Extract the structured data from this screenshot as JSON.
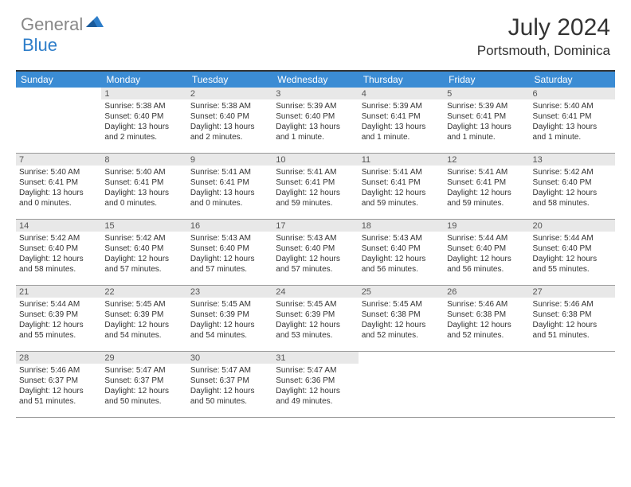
{
  "logo": {
    "general": "General",
    "blue": "Blue"
  },
  "title": "July 2024",
  "location": "Portsmouth, Dominica",
  "colors": {
    "header_bg": "#3b8cd4",
    "daynum_bg": "#e8e8e8",
    "border": "#999999",
    "text": "#333333",
    "logo_gray": "#888888",
    "logo_blue": "#2d7dc9"
  },
  "weekdays": [
    "Sunday",
    "Monday",
    "Tuesday",
    "Wednesday",
    "Thursday",
    "Friday",
    "Saturday"
  ],
  "weeks": [
    [
      {
        "n": "",
        "sr": "",
        "ss": "",
        "d1": "",
        "d2": ""
      },
      {
        "n": "1",
        "sr": "Sunrise: 5:38 AM",
        "ss": "Sunset: 6:40 PM",
        "d1": "Daylight: 13 hours",
        "d2": "and 2 minutes."
      },
      {
        "n": "2",
        "sr": "Sunrise: 5:38 AM",
        "ss": "Sunset: 6:40 PM",
        "d1": "Daylight: 13 hours",
        "d2": "and 2 minutes."
      },
      {
        "n": "3",
        "sr": "Sunrise: 5:39 AM",
        "ss": "Sunset: 6:40 PM",
        "d1": "Daylight: 13 hours",
        "d2": "and 1 minute."
      },
      {
        "n": "4",
        "sr": "Sunrise: 5:39 AM",
        "ss": "Sunset: 6:41 PM",
        "d1": "Daylight: 13 hours",
        "d2": "and 1 minute."
      },
      {
        "n": "5",
        "sr": "Sunrise: 5:39 AM",
        "ss": "Sunset: 6:41 PM",
        "d1": "Daylight: 13 hours",
        "d2": "and 1 minute."
      },
      {
        "n": "6",
        "sr": "Sunrise: 5:40 AM",
        "ss": "Sunset: 6:41 PM",
        "d1": "Daylight: 13 hours",
        "d2": "and 1 minute."
      }
    ],
    [
      {
        "n": "7",
        "sr": "Sunrise: 5:40 AM",
        "ss": "Sunset: 6:41 PM",
        "d1": "Daylight: 13 hours",
        "d2": "and 0 minutes."
      },
      {
        "n": "8",
        "sr": "Sunrise: 5:40 AM",
        "ss": "Sunset: 6:41 PM",
        "d1": "Daylight: 13 hours",
        "d2": "and 0 minutes."
      },
      {
        "n": "9",
        "sr": "Sunrise: 5:41 AM",
        "ss": "Sunset: 6:41 PM",
        "d1": "Daylight: 13 hours",
        "d2": "and 0 minutes."
      },
      {
        "n": "10",
        "sr": "Sunrise: 5:41 AM",
        "ss": "Sunset: 6:41 PM",
        "d1": "Daylight: 12 hours",
        "d2": "and 59 minutes."
      },
      {
        "n": "11",
        "sr": "Sunrise: 5:41 AM",
        "ss": "Sunset: 6:41 PM",
        "d1": "Daylight: 12 hours",
        "d2": "and 59 minutes."
      },
      {
        "n": "12",
        "sr": "Sunrise: 5:41 AM",
        "ss": "Sunset: 6:41 PM",
        "d1": "Daylight: 12 hours",
        "d2": "and 59 minutes."
      },
      {
        "n": "13",
        "sr": "Sunrise: 5:42 AM",
        "ss": "Sunset: 6:40 PM",
        "d1": "Daylight: 12 hours",
        "d2": "and 58 minutes."
      }
    ],
    [
      {
        "n": "14",
        "sr": "Sunrise: 5:42 AM",
        "ss": "Sunset: 6:40 PM",
        "d1": "Daylight: 12 hours",
        "d2": "and 58 minutes."
      },
      {
        "n": "15",
        "sr": "Sunrise: 5:42 AM",
        "ss": "Sunset: 6:40 PM",
        "d1": "Daylight: 12 hours",
        "d2": "and 57 minutes."
      },
      {
        "n": "16",
        "sr": "Sunrise: 5:43 AM",
        "ss": "Sunset: 6:40 PM",
        "d1": "Daylight: 12 hours",
        "d2": "and 57 minutes."
      },
      {
        "n": "17",
        "sr": "Sunrise: 5:43 AM",
        "ss": "Sunset: 6:40 PM",
        "d1": "Daylight: 12 hours",
        "d2": "and 57 minutes."
      },
      {
        "n": "18",
        "sr": "Sunrise: 5:43 AM",
        "ss": "Sunset: 6:40 PM",
        "d1": "Daylight: 12 hours",
        "d2": "and 56 minutes."
      },
      {
        "n": "19",
        "sr": "Sunrise: 5:44 AM",
        "ss": "Sunset: 6:40 PM",
        "d1": "Daylight: 12 hours",
        "d2": "and 56 minutes."
      },
      {
        "n": "20",
        "sr": "Sunrise: 5:44 AM",
        "ss": "Sunset: 6:40 PM",
        "d1": "Daylight: 12 hours",
        "d2": "and 55 minutes."
      }
    ],
    [
      {
        "n": "21",
        "sr": "Sunrise: 5:44 AM",
        "ss": "Sunset: 6:39 PM",
        "d1": "Daylight: 12 hours",
        "d2": "and 55 minutes."
      },
      {
        "n": "22",
        "sr": "Sunrise: 5:45 AM",
        "ss": "Sunset: 6:39 PM",
        "d1": "Daylight: 12 hours",
        "d2": "and 54 minutes."
      },
      {
        "n": "23",
        "sr": "Sunrise: 5:45 AM",
        "ss": "Sunset: 6:39 PM",
        "d1": "Daylight: 12 hours",
        "d2": "and 54 minutes."
      },
      {
        "n": "24",
        "sr": "Sunrise: 5:45 AM",
        "ss": "Sunset: 6:39 PM",
        "d1": "Daylight: 12 hours",
        "d2": "and 53 minutes."
      },
      {
        "n": "25",
        "sr": "Sunrise: 5:45 AM",
        "ss": "Sunset: 6:38 PM",
        "d1": "Daylight: 12 hours",
        "d2": "and 52 minutes."
      },
      {
        "n": "26",
        "sr": "Sunrise: 5:46 AM",
        "ss": "Sunset: 6:38 PM",
        "d1": "Daylight: 12 hours",
        "d2": "and 52 minutes."
      },
      {
        "n": "27",
        "sr": "Sunrise: 5:46 AM",
        "ss": "Sunset: 6:38 PM",
        "d1": "Daylight: 12 hours",
        "d2": "and 51 minutes."
      }
    ],
    [
      {
        "n": "28",
        "sr": "Sunrise: 5:46 AM",
        "ss": "Sunset: 6:37 PM",
        "d1": "Daylight: 12 hours",
        "d2": "and 51 minutes."
      },
      {
        "n": "29",
        "sr": "Sunrise: 5:47 AM",
        "ss": "Sunset: 6:37 PM",
        "d1": "Daylight: 12 hours",
        "d2": "and 50 minutes."
      },
      {
        "n": "30",
        "sr": "Sunrise: 5:47 AM",
        "ss": "Sunset: 6:37 PM",
        "d1": "Daylight: 12 hours",
        "d2": "and 50 minutes."
      },
      {
        "n": "31",
        "sr": "Sunrise: 5:47 AM",
        "ss": "Sunset: 6:36 PM",
        "d1": "Daylight: 12 hours",
        "d2": "and 49 minutes."
      },
      {
        "n": "",
        "sr": "",
        "ss": "",
        "d1": "",
        "d2": ""
      },
      {
        "n": "",
        "sr": "",
        "ss": "",
        "d1": "",
        "d2": ""
      },
      {
        "n": "",
        "sr": "",
        "ss": "",
        "d1": "",
        "d2": ""
      }
    ]
  ]
}
